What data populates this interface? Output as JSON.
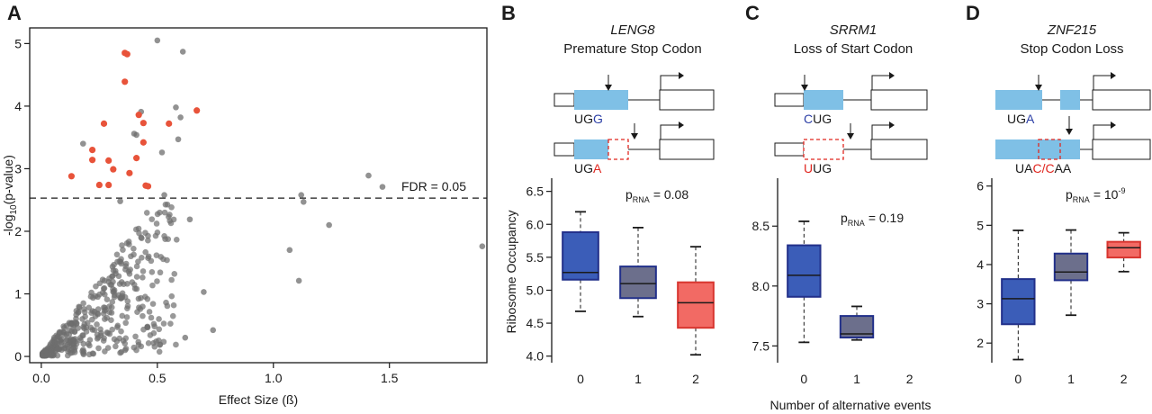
{
  "colors": {
    "points_gray": "#6e6e6e",
    "points_sig": "#e8533a",
    "exon_blue": "#7fc0e6",
    "box_blue": "#3b5db8",
    "box_blue_border": "#22308a",
    "box_slate": "#6c6f8c",
    "box_red": "#f26a64",
    "box_red_border": "#d8352f",
    "codon_blue": "#2c3fa6",
    "codon_red": "#e0261f"
  },
  "panels": {
    "A": {
      "label": "A"
    },
    "B": {
      "label": "B",
      "gene": "LENG8",
      "subtitle": "Premature Stop Codon",
      "codon_top": {
        "prefix": "UG",
        "mut": "G",
        "suffix": ""
      },
      "codon_bottom": {
        "prefix": "UG",
        "mut": "A",
        "suffix": ""
      },
      "p_main": "p",
      "p_sub": "RNA",
      "p_value": "= 0.08",
      "p_sup": ""
    },
    "C": {
      "label": "C",
      "gene": "SRRM1",
      "subtitle": "Loss of Start Codon",
      "codon_top": {
        "prefix": "",
        "mut": "C",
        "suffix": "UG"
      },
      "codon_bottom": {
        "prefix": "",
        "mut": "U",
        "suffix": "UG"
      },
      "p_main": "p",
      "p_sub": "RNA",
      "p_value": "= 0.19",
      "p_sup": ""
    },
    "D": {
      "label": "D",
      "gene": "ZNF215",
      "subtitle": "Stop Codon Loss",
      "codon_top": {
        "prefix": "UG",
        "mut": "A",
        "suffix": ""
      },
      "codon_bottom": {
        "prefix": "UA",
        "mut": "C/C",
        "suffix": "AA"
      },
      "p_main": "p",
      "p_sub": "RNA",
      "p_value": "= 10",
      "p_sup": "-9"
    }
  },
  "shared": {
    "ylabel_box": "Ribosome Occupancy",
    "xlabel_box": "Number of alternative events"
  },
  "chart_data": [
    {
      "type": "scatter",
      "panel": "A",
      "xlabel": "Effect Size (ß)",
      "ylabel_main": "-log",
      "ylabel_sub": "10",
      "ylabel_tail": "(p-value)",
      "xlim": [
        -0.05,
        1.92
      ],
      "ylim": [
        -0.1,
        5.25
      ],
      "xticks": [
        0.0,
        0.5,
        1.0,
        1.5
      ],
      "xtick_labels": [
        "0.0",
        "0.5",
        "1.0",
        "1.5"
      ],
      "yticks": [
        0,
        1,
        2,
        3,
        4,
        5
      ],
      "ytick_labels": [
        "0",
        "1",
        "2",
        "3",
        "4",
        "5"
      ],
      "threshold": {
        "y": 2.53,
        "label": "FDR = 0.05"
      },
      "significant": [
        [
          0.36,
          4.85
        ],
        [
          0.37,
          4.83
        ],
        [
          0.36,
          4.39
        ],
        [
          0.42,
          3.86
        ],
        [
          0.44,
          3.73
        ],
        [
          0.55,
          3.72
        ],
        [
          0.67,
          3.93
        ],
        [
          0.27,
          3.72
        ],
        [
          0.44,
          3.42
        ],
        [
          0.22,
          3.3
        ],
        [
          0.22,
          3.14
        ],
        [
          0.29,
          3.13
        ],
        [
          0.41,
          3.17
        ],
        [
          0.38,
          2.93
        ],
        [
          0.13,
          2.88
        ],
        [
          0.25,
          2.74
        ],
        [
          0.29,
          2.74
        ],
        [
          0.45,
          2.73
        ],
        [
          0.46,
          2.72
        ],
        [
          0.31,
          2.99
        ]
      ],
      "notable_gray": [
        [
          0.5,
          5.05
        ],
        [
          0.61,
          4.87
        ],
        [
          0.58,
          3.98
        ],
        [
          0.43,
          3.91
        ],
        [
          0.6,
          3.82
        ],
        [
          0.41,
          3.54
        ],
        [
          0.18,
          3.4
        ],
        [
          0.52,
          3.26
        ],
        [
          0.4,
          3.56
        ],
        [
          0.59,
          3.47
        ],
        [
          1.41,
          2.89
        ],
        [
          1.47,
          2.71
        ],
        [
          1.12,
          2.58
        ],
        [
          1.13,
          2.47
        ],
        [
          1.9,
          1.76
        ],
        [
          1.24,
          2.1
        ],
        [
          1.07,
          1.7
        ],
        [
          1.11,
          1.21
        ],
        [
          0.53,
          2.58
        ],
        [
          0.7,
          1.03
        ],
        [
          0.74,
          0.42
        ],
        [
          0.62,
          0.3
        ],
        [
          0.64,
          2.19
        ],
        [
          0.34,
          2.48
        ]
      ],
      "cloud_points": 450,
      "cloud_seed": 7
    },
    {
      "type": "box",
      "panel": "B",
      "categories": [
        "0",
        "1",
        "2"
      ],
      "ylim": [
        3.9,
        6.7
      ],
      "yticks": [
        4.0,
        4.5,
        5.0,
        5.5,
        6.0,
        6.5
      ],
      "ytick_labels": [
        "4.0",
        "4.5",
        "5.0",
        "5.5",
        "6.0",
        "6.5"
      ],
      "boxes": [
        {
          "whisker_low": 4.68,
          "q1": 5.16,
          "median": 5.27,
          "q3": 5.88,
          "whisker_high": 6.19
        },
        {
          "whisker_low": 4.6,
          "q1": 4.88,
          "median": 5.1,
          "q3": 5.36,
          "whisker_high": 5.95
        },
        {
          "whisker_low": 4.02,
          "q1": 4.43,
          "median": 4.81,
          "q3": 5.12,
          "whisker_high": 5.66
        }
      ]
    },
    {
      "type": "box",
      "panel": "C",
      "categories": [
        "0",
        "1",
        "2"
      ],
      "ylim": [
        7.36,
        8.9
      ],
      "yticks": [
        7.5,
        8.0,
        8.5
      ],
      "ytick_labels": [
        "7.5",
        "8.0",
        "8.5"
      ],
      "boxes": [
        {
          "whisker_low": 7.53,
          "q1": 7.91,
          "median": 8.09,
          "q3": 8.34,
          "whisker_high": 8.54
        },
        {
          "whisker_low": 7.55,
          "q1": 7.57,
          "median": 7.6,
          "q3": 7.75,
          "whisker_high": 7.83
        },
        null
      ]
    },
    {
      "type": "box",
      "panel": "D",
      "categories": [
        "0",
        "1",
        "2"
      ],
      "ylim": [
        1.5,
        6.2
      ],
      "yticks": [
        2,
        3,
        4,
        5,
        6
      ],
      "ytick_labels": [
        "2",
        "3",
        "4",
        "5",
        "6"
      ],
      "boxes": [
        {
          "whisker_low": 1.58,
          "q1": 2.48,
          "median": 3.13,
          "q3": 3.63,
          "whisker_high": 4.87
        },
        {
          "whisker_low": 2.71,
          "q1": 3.6,
          "median": 3.81,
          "q3": 4.28,
          "whisker_high": 4.88
        },
        {
          "whisker_low": 3.82,
          "q1": 4.18,
          "median": 4.43,
          "q3": 4.58,
          "whisker_high": 4.81
        }
      ]
    }
  ]
}
